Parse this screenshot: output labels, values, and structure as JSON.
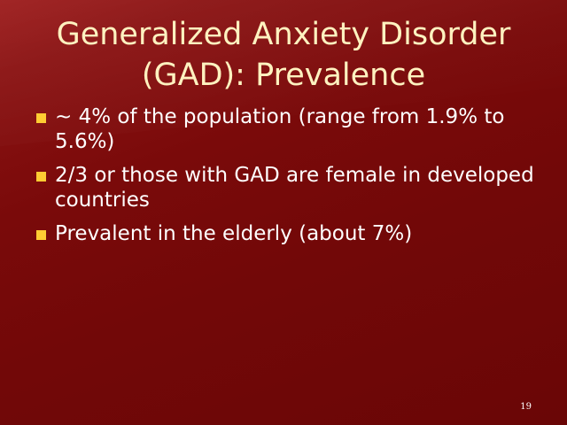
{
  "slide": {
    "title_line1": "Generalized Anxiety Disorder",
    "title_line2": "(GAD): Prevalence",
    "bullets": [
      "~ 4% of the population (range from 1.9% to 5.6%)",
      "2/3 or those with GAD are female in developed countries",
      "Prevalent in the elderly (about 7%)"
    ],
    "slide_number": "19"
  },
  "colors": {
    "background": "#7a0a0a",
    "title": "#fff2c0",
    "text": "#ffffff",
    "bullet": "#ffcc33"
  }
}
